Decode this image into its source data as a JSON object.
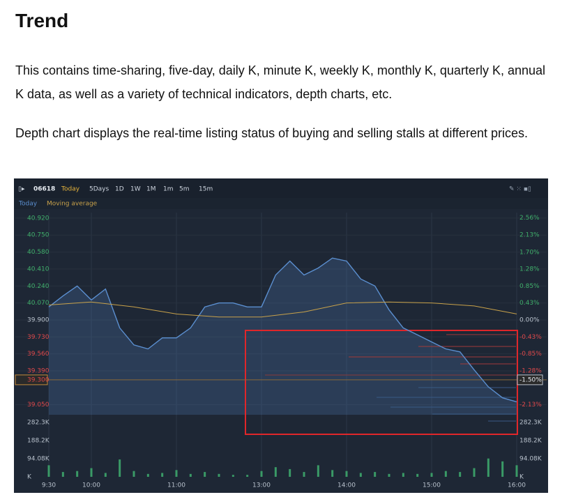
{
  "header": {
    "title": "Trend"
  },
  "paragraphs": [
    "This contains time-sharing, five-day, daily K, minute K, weekly K, monthly K, quarterly K, annual K data, as well as a variety of technical indicators, depth charts, etc.",
    "Depth chart displays the real-time listing status of buying and selling stalls at different prices."
  ],
  "chart_data": {
    "type": "line",
    "toolbar": {
      "code": "06618",
      "periods": [
        "Today",
        "5Days",
        "1D",
        "1W",
        "1M",
        "1m",
        "5m",
        "15m"
      ]
    },
    "series": [
      {
        "name": "Today",
        "color": "#5b8fd0",
        "x": [
          0,
          10,
          20,
          30,
          40,
          50,
          60,
          70,
          80,
          90,
          100,
          110,
          120,
          130,
          140,
          150,
          160,
          170,
          180,
          190,
          200,
          210,
          220,
          230,
          240,
          250,
          260,
          270,
          280,
          290,
          300,
          310,
          320,
          330
        ],
        "values": [
          40.03,
          40.14,
          40.24,
          40.1,
          40.21,
          39.82,
          39.65,
          39.61,
          39.72,
          39.72,
          39.82,
          40.03,
          40.07,
          40.07,
          40.03,
          40.03,
          40.35,
          40.49,
          40.35,
          40.42,
          40.52,
          40.49,
          40.31,
          40.24,
          40.0,
          39.82,
          39.75,
          39.68,
          39.61,
          39.58,
          39.4,
          39.23,
          39.12,
          39.08
        ]
      },
      {
        "name": "Moving average",
        "color": "#c9a24a",
        "x": [
          0,
          30,
          60,
          90,
          120,
          150,
          180,
          210,
          240,
          270,
          300,
          330
        ],
        "values": [
          40.05,
          40.08,
          40.03,
          39.96,
          39.93,
          39.93,
          39.98,
          40.07,
          40.08,
          40.07,
          40.04,
          39.96
        ]
      }
    ],
    "xlim": [
      0,
      330
    ],
    "xticks": [
      {
        "value": 0,
        "label": "9:30"
      },
      {
        "value": 30,
        "label": "10:00"
      },
      {
        "value": 90,
        "label": "11:00"
      },
      {
        "value": 150,
        "label": "13:00"
      },
      {
        "value": 210,
        "label": "14:00"
      },
      {
        "value": 270,
        "label": "15:00"
      },
      {
        "value": 330,
        "label": "16:00"
      }
    ],
    "ylim": [
      38.95,
      40.975
    ],
    "yticks": [
      {
        "value": 40.92,
        "label": "40.920"
      },
      {
        "value": 40.75,
        "label": "40.750"
      },
      {
        "value": 40.58,
        "label": "40.580"
      },
      {
        "value": 40.41,
        "label": "40.410"
      },
      {
        "value": 40.24,
        "label": "40.240"
      },
      {
        "value": 40.07,
        "label": "40.070"
      },
      {
        "value": 39.9,
        "label": "39.900"
      },
      {
        "value": 39.73,
        "label": "39.730"
      },
      {
        "value": 39.56,
        "label": "39.560"
      },
      {
        "value": 39.39,
        "label": "39.390"
      },
      {
        "value": 39.05,
        "label": "39.050"
      }
    ],
    "y2lim": [
      -2.381,
      2.694
    ],
    "y2ticks": [
      {
        "value": 2.56,
        "label": "2.56%"
      },
      {
        "value": 2.13,
        "label": "2.13%"
      },
      {
        "value": 1.7,
        "label": "1.70%"
      },
      {
        "value": 1.28,
        "label": "1.28%"
      },
      {
        "value": 0.85,
        "label": "0.85%"
      },
      {
        "value": 0.43,
        "label": "0.43%"
      },
      {
        "value": 0,
        "label": "0.00%"
      },
      {
        "value": -0.43,
        "label": "-0.43%"
      },
      {
        "value": -0.85,
        "label": "-0.85%"
      },
      {
        "value": -1.28,
        "label": "-1.28%"
      },
      {
        "value": -2.13,
        "label": "-2.13%"
      }
    ],
    "cursor": {
      "value": 39.3,
      "label": "39.300"
    },
    "cursor_percent": {
      "value": -1.5,
      "label": "-1.50%"
    },
    "volume": {
      "color": "#3a9a66",
      "x": [
        0,
        10,
        20,
        30,
        40,
        50,
        60,
        70,
        80,
        90,
        100,
        110,
        120,
        130,
        140,
        150,
        160,
        170,
        180,
        190,
        200,
        210,
        220,
        230,
        240,
        250,
        260,
        270,
        280,
        290,
        300,
        310,
        320,
        330
      ],
      "values": [
        60000,
        25000,
        30000,
        45000,
        20000,
        90000,
        30000,
        15000,
        20000,
        35000,
        15000,
        25000,
        15000,
        10000,
        10000,
        30000,
        50000,
        40000,
        25000,
        60000,
        35000,
        30000,
        20000,
        25000,
        15000,
        20000,
        15000,
        20000,
        30000,
        25000,
        45000,
        95000,
        80000,
        60000
      ],
      "ylim": [
        0,
        300000
      ],
      "yticks": [
        {
          "value": 282300,
          "label": "282.3K"
        },
        {
          "value": 188200,
          "label": "188.2K"
        },
        {
          "value": 94080,
          "label": "94.08K"
        },
        {
          "value": 0,
          "label": "K"
        }
      ]
    }
  }
}
